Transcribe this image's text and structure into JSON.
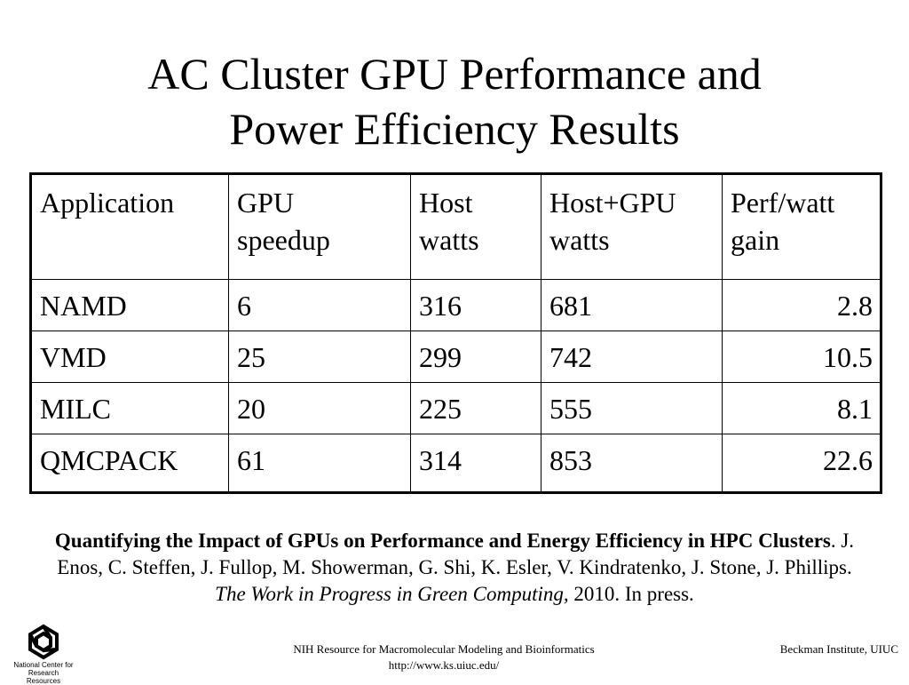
{
  "slide": {
    "title_line1": "AC Cluster GPU Performance and",
    "title_line2": "Power Efficiency Results"
  },
  "table": {
    "headers": [
      {
        "line1": "Application",
        "line2": ""
      },
      {
        "line1": "GPU",
        "line2": "speedup"
      },
      {
        "line1": "Host",
        "line2": "watts"
      },
      {
        "line1": "Host+GPU",
        "line2": "watts"
      },
      {
        "line1": "Perf/watt",
        "line2": "gain"
      }
    ],
    "rows": [
      {
        "application": "NAMD",
        "gpu_speedup": "6",
        "host_watts": "316",
        "host_gpu_watts": "681",
        "perf_watt_gain": "2.8"
      },
      {
        "application": "VMD",
        "gpu_speedup": "25",
        "host_watts": "299",
        "host_gpu_watts": "742",
        "perf_watt_gain": "10.5"
      },
      {
        "application": "MILC",
        "gpu_speedup": "20",
        "host_watts": "225",
        "host_gpu_watts": "555",
        "perf_watt_gain": "8.1"
      },
      {
        "application": "QMCPACK",
        "gpu_speedup": "61",
        "host_watts": "314",
        "host_gpu_watts": "853",
        "perf_watt_gain": "22.6"
      }
    ]
  },
  "citation": {
    "title": "Quantifying the Impact of GPUs on Performance and Energy Efficiency in HPC Clusters",
    "authors": ". J. Enos, C. Steffen, J. Fullop, M. Showerman, G. Shi, K. Esler, V. Kindratenko, J. Stone, J. Phillips. ",
    "venue": "The Work in Progress in Green Computing,",
    "year_status": " 2010. In press."
  },
  "footer": {
    "logo_line1": "National Center for",
    "logo_line2": "Research Resources",
    "center_line1": "NIH Resource for Macromolecular Modeling and Bioinformatics",
    "center_line2": "http://www.ks.uiuc.edu/",
    "right": "Beckman Institute, UIUC"
  }
}
